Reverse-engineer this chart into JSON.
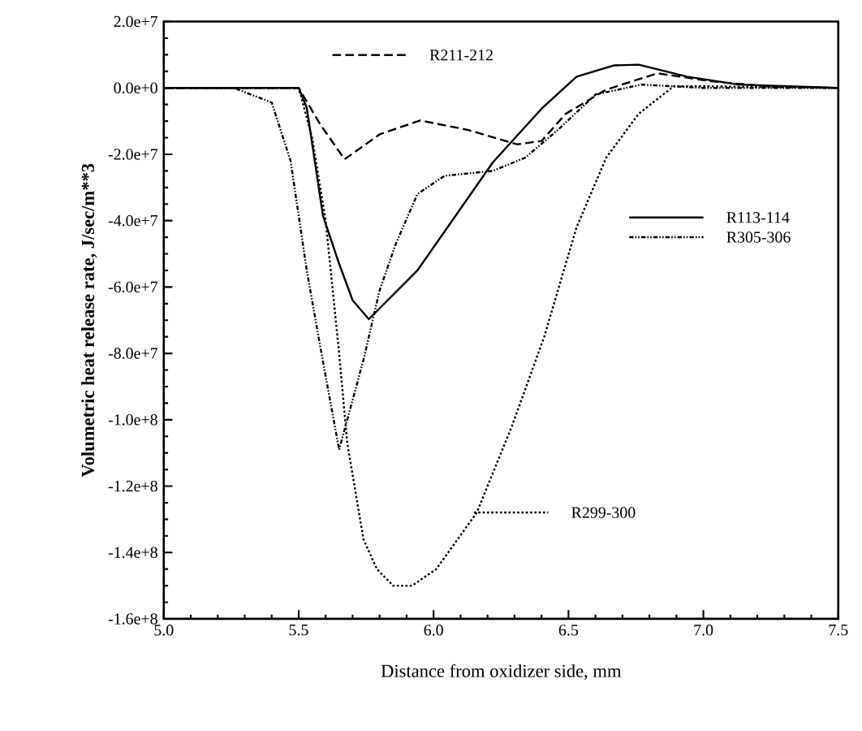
{
  "chart_data": {
    "type": "line",
    "xlabel": "Distance from oxidizer side, mm",
    "ylabel": "Volumetric heat release rate, J/sec/m**3",
    "xlim": [
      5.0,
      7.5
    ],
    "ylim": [
      -160000000,
      20000000
    ],
    "xticks": [
      {
        "value": 5.0,
        "label": "5.0"
      },
      {
        "value": 5.5,
        "label": "5.5"
      },
      {
        "value": 6.0,
        "label": "6.0"
      },
      {
        "value": 6.5,
        "label": "6.5"
      },
      {
        "value": 7.0,
        "label": "7.0"
      },
      {
        "value": 7.5,
        "label": "7.5"
      }
    ],
    "yticks": [
      {
        "value": 20000000,
        "label": "2.0e+7"
      },
      {
        "value": 0,
        "label": "0.0e+0"
      },
      {
        "value": -20000000,
        "label": "-2.0e+7"
      },
      {
        "value": -40000000,
        "label": "-4.0e+7"
      },
      {
        "value": -60000000,
        "label": "-6.0e+7"
      },
      {
        "value": -80000000,
        "label": "-8.0e+7"
      },
      {
        "value": -100000000,
        "label": "-1.0e+8"
      },
      {
        "value": -120000000,
        "label": "-1.2e+8"
      },
      {
        "value": -140000000,
        "label": "-1.4e+8"
      },
      {
        "value": -160000000,
        "label": "-1.6e+8"
      }
    ],
    "grid": false,
    "legend": "right",
    "series": [
      {
        "name": "R211-212",
        "color": "#000000",
        "line_style": "dashed",
        "x": [
          5.0,
          5.3,
          5.5,
          5.58,
          5.67,
          5.8,
          5.95,
          6.13,
          6.31,
          6.4,
          6.49,
          6.64,
          6.83,
          7.03,
          7.23,
          7.5
        ],
        "values": [
          0,
          0,
          0,
          -11000000,
          -21500000,
          -14000000,
          -9800000,
          -12700000,
          -17000000,
          -16000000,
          -7800000,
          -500000,
          4400000,
          2000000,
          500000,
          0
        ]
      },
      {
        "name": "R113-114",
        "color": "#000000",
        "line_style": "solid",
        "x": [
          5.0,
          5.3,
          5.5,
          5.53,
          5.59,
          5.65,
          5.7,
          5.76,
          5.94,
          6.22,
          6.4,
          6.53,
          6.67,
          6.76,
          6.94,
          7.13,
          7.5
        ],
        "values": [
          0,
          0,
          0,
          -6000000,
          -38500000,
          -53000000,
          -64000000,
          -69700000,
          -55000000,
          -22400000,
          -6300000,
          3400000,
          6800000,
          7000000,
          3400000,
          1000000,
          0
        ]
      },
      {
        "name": "R305-306",
        "color": "#000000",
        "line_style": "dashdotdotted",
        "x": [
          5.0,
          5.26,
          5.4,
          5.47,
          5.53,
          5.58,
          5.65,
          5.74,
          5.8,
          5.86,
          5.94,
          6.04,
          6.22,
          6.34,
          6.46,
          6.6,
          6.77,
          7.0,
          7.5
        ],
        "values": [
          0,
          0,
          -4400000,
          -22000000,
          -55000000,
          -78000000,
          -109000000,
          -82000000,
          -61000000,
          -47000000,
          -32000000,
          -26500000,
          -25000000,
          -21000000,
          -12700000,
          -2000000,
          1000000,
          0,
          0
        ]
      },
      {
        "name": "R299-300",
        "color": "#000000",
        "line_style": "dotted",
        "x": [
          5.0,
          5.3,
          5.5,
          5.55,
          5.6,
          5.65,
          5.68,
          5.74,
          5.79,
          5.85,
          5.92,
          6.01,
          6.16,
          6.29,
          6.41,
          6.53,
          6.64,
          6.76,
          6.89,
          7.0,
          7.5
        ],
        "values": [
          0,
          0,
          0,
          -15000000,
          -40000000,
          -80000000,
          -107000000,
          -136000000,
          -145000000,
          -150000000,
          -150000000,
          -145000000,
          -128000000,
          -102000000,
          -75000000,
          -42000000,
          -21000000,
          -7800000,
          500000,
          500000,
          0
        ]
      }
    ]
  }
}
